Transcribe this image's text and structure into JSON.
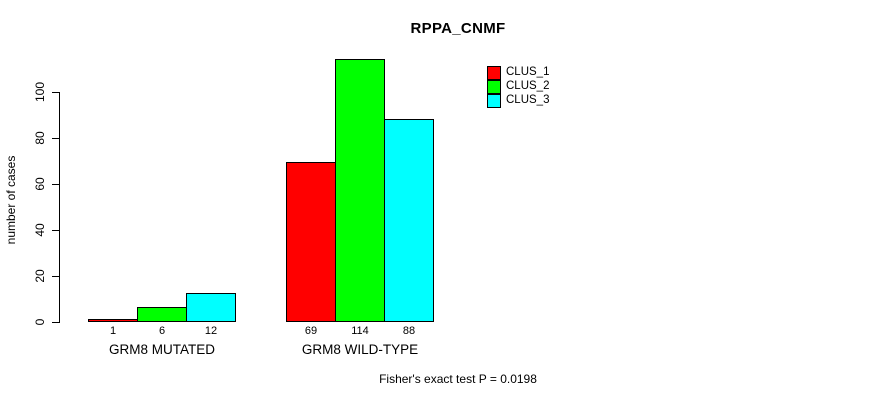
{
  "chart_data": {
    "type": "bar",
    "title": "RPPA_CNMF",
    "ylabel": "number of cases",
    "xlabel": "",
    "ylim": [
      0,
      115
    ],
    "yticks": [
      0,
      20,
      40,
      60,
      80,
      100
    ],
    "grid": false,
    "legend_position": "top-right",
    "categories": [
      "GRM8 MUTATED",
      "GRM8 WILD-TYPE"
    ],
    "series": [
      {
        "name": "CLUS_1",
        "color": "#ff0000",
        "values": [
          1,
          69
        ]
      },
      {
        "name": "CLUS_2",
        "color": "#00ff00",
        "values": [
          6,
          114
        ]
      },
      {
        "name": "CLUS_3",
        "color": "#00ffff",
        "values": [
          12,
          88
        ]
      }
    ],
    "bar_value_labels": [
      [
        "1",
        "6",
        "12"
      ],
      [
        "69",
        "114",
        "88"
      ]
    ],
    "caption": "Fisher's exact test P = 0.0198"
  }
}
